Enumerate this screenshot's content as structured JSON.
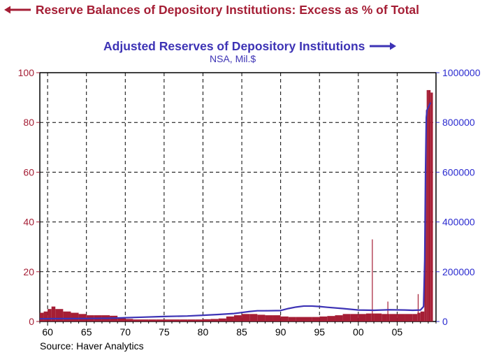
{
  "header": {
    "left_series_title": "Reserve Balances of Depository Institutions: Excess as % of Total",
    "right_series_title": "Adjusted Reserves of Depository Institutions",
    "right_series_subtitle": "NSA, Mil.$"
  },
  "footer": {
    "source": "Source: Haver Analytics"
  },
  "colors": {
    "left_series": "#a51e35",
    "right_series": "#3d33b5",
    "left_axis": "#a51e35",
    "right_axis": "#2b2bcf"
  },
  "chart_data": {
    "type": "bar+line",
    "title": "Reserve Balances of Depository Institutions: Excess as % of Total / Adjusted Reserves of Depository Institutions",
    "xlim": [
      1959,
      2010
    ],
    "x_ticks": [
      1960,
      1965,
      1970,
      1975,
      1980,
      1985,
      1990,
      1995,
      2000,
      2005
    ],
    "x_tick_labels": [
      "60",
      "65",
      "70",
      "75",
      "80",
      "85",
      "90",
      "95",
      "00",
      "05"
    ],
    "y_left": {
      "label": "Excess as % of Total",
      "lim": [
        0,
        100
      ],
      "ticks": [
        0,
        20,
        40,
        60,
        80,
        100
      ],
      "tick_labels": [
        "0",
        "20",
        "40",
        "60",
        "80",
        "100"
      ]
    },
    "y_right": {
      "label": "NSA, Mil.$",
      "lim": [
        0,
        1000000
      ],
      "ticks": [
        0,
        200000,
        400000,
        600000,
        800000,
        1000000
      ],
      "tick_labels": [
        "0",
        "200000",
        "400000",
        "600000",
        "800000",
        "1000000"
      ]
    },
    "series": [
      {
        "name": "Reserve Balances of Depository Institutions: Excess as % of Total",
        "axis": "left",
        "style": "bars",
        "x": [
          1959,
          1959.5,
          1960,
          1960.5,
          1961,
          1962,
          1963,
          1964,
          1965,
          1966,
          1967,
          1968,
          1969,
          1970,
          1971,
          1972,
          1973,
          1974,
          1975,
          1976,
          1977,
          1978,
          1979,
          1980,
          1981,
          1982,
          1983,
          1984,
          1985,
          1986,
          1987,
          1988,
          1989,
          1990,
          1991,
          1992,
          1993,
          1994,
          1995,
          1996,
          1997,
          1998,
          1999,
          2000,
          2001,
          2001.7,
          2001.75,
          2001.8,
          2002,
          2003,
          2003.7,
          2003.75,
          2003.8,
          2004,
          2005,
          2006,
          2007,
          2007.6,
          2007.65,
          2007.7,
          2008,
          2008.5,
          2008.6,
          2008.7,
          2008.8,
          2009,
          2009.3
        ],
        "values": [
          3.5,
          4,
          5,
          6,
          5,
          4,
          3.5,
          3,
          2.5,
          2.5,
          2.5,
          2.3,
          1.5,
          1,
          0.8,
          0.8,
          0.8,
          0.8,
          0.8,
          0.8,
          0.8,
          0.8,
          0.8,
          0.9,
          1,
          1.2,
          2,
          2.5,
          3,
          3,
          2.7,
          2.5,
          2.5,
          2,
          1.8,
          1.8,
          1.8,
          1.8,
          2,
          2.2,
          2.5,
          3,
          3,
          3,
          3.2,
          3.2,
          33,
          3.2,
          3.2,
          3,
          3,
          8,
          3,
          3,
          3,
          3,
          3,
          3.5,
          11,
          3.5,
          4,
          20,
          60,
          85,
          93,
          93,
          92
        ]
      },
      {
        "name": "Adjusted Reserves of Depository Institutions",
        "axis": "right",
        "style": "line",
        "x": [
          1959,
          1962,
          1965,
          1968,
          1970,
          1972,
          1975,
          1978,
          1980,
          1982,
          1984,
          1985,
          1986,
          1987,
          1988,
          1990,
          1991,
          1992,
          1993,
          1994,
          1995,
          1996,
          1998,
          2000,
          2002,
          2004,
          2006,
          2007,
          2008,
          2008.4,
          2008.55,
          2008.65,
          2008.75,
          2008.85,
          2009,
          2009.3
        ],
        "values": [
          11000,
          11500,
          12000,
          13000,
          15000,
          17000,
          20000,
          22000,
          25000,
          28000,
          32000,
          36000,
          40000,
          43000,
          43000,
          44000,
          52000,
          58000,
          62000,
          62000,
          60000,
          57000,
          52000,
          46000,
          45000,
          47000,
          46000,
          45000,
          46000,
          60000,
          250000,
          600000,
          820000,
          850000,
          860000,
          880000
        ]
      }
    ]
  }
}
